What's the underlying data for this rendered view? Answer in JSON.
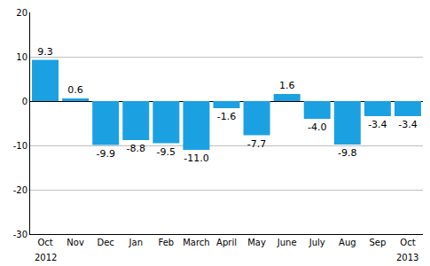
{
  "chart_data": {
    "type": "bar",
    "categories": [
      "Oct",
      "Nov",
      "Dec",
      "Jan",
      "Feb",
      "March",
      "April",
      "May",
      "June",
      "July",
      "Aug",
      "Sep",
      "Oct"
    ],
    "values": [
      9.3,
      0.6,
      -9.9,
      -8.8,
      -9.5,
      -11.0,
      -1.6,
      -7.7,
      1.6,
      -4.0,
      -9.8,
      -3.4,
      -3.4
    ],
    "value_labels": [
      "9.3",
      "0.6",
      "-9.9",
      "-8.8",
      "-9.5",
      "-11.0",
      "-1.6",
      "-7.7",
      "1.6",
      "-4.0",
      "-9.8",
      "-3.4",
      "-3.4"
    ],
    "color": "#1ba1e2",
    "ylim": [
      -30,
      20
    ],
    "yticks": [
      -30,
      -20,
      -10,
      0,
      10,
      20
    ],
    "grid": true,
    "data_labels": true,
    "annotations": [
      {
        "x": 0,
        "text": "2012"
      },
      {
        "x": 12,
        "text": "2013"
      }
    ]
  }
}
